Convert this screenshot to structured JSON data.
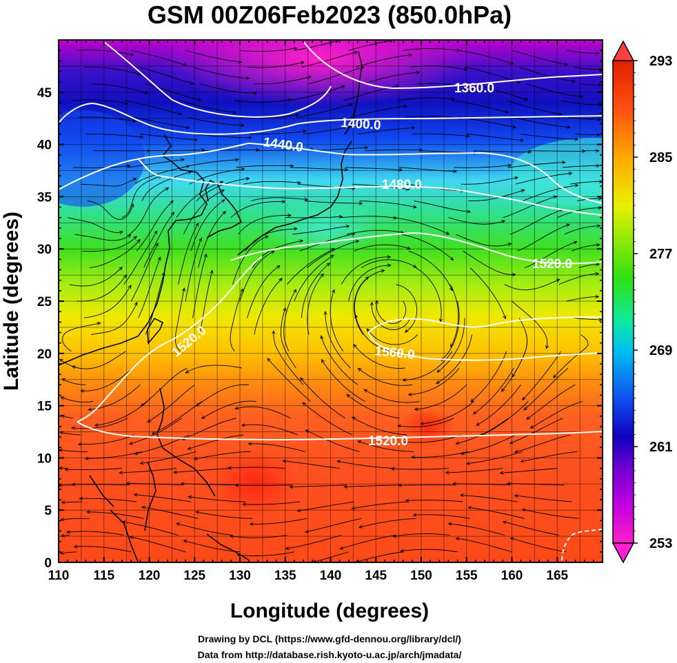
{
  "title": "GSM 00Z06Feb2023 (850.0hPa)",
  "x_axis": {
    "label": "Longitude (degrees)",
    "range": [
      110,
      170
    ],
    "ticks": [
      "110",
      "115",
      "120",
      "125",
      "130",
      "135",
      "140",
      "145",
      "150",
      "155",
      "160",
      "165"
    ]
  },
  "y_axis": {
    "label": "Latitude  (degrees)",
    "range": [
      0,
      50
    ],
    "ticks": [
      "0",
      "5",
      "10",
      "15",
      "20",
      "25",
      "30",
      "35",
      "40",
      "45"
    ]
  },
  "colorbar": {
    "range": [
      253,
      293
    ],
    "ticks": [
      "253",
      "261",
      "269",
      "277",
      "285",
      "293"
    ],
    "colors": [
      "#ff1fc8",
      "#c000e0",
      "#7a00d8",
      "#1800c8",
      "#1048f0",
      "#00c8f0",
      "#10e880",
      "#38e010",
      "#e8f000",
      "#ffa000",
      "#ff5000",
      "#e02000"
    ]
  },
  "contours": [
    {
      "value": 1360.0,
      "label": "1360.0"
    },
    {
      "value": 1400.0,
      "label": "1400.0"
    },
    {
      "value": 1440.0,
      "label": "1440.0"
    },
    {
      "value": 1480.0,
      "label": "1480.0"
    },
    {
      "value": 1520.0,
      "label": "1520.0"
    },
    {
      "value": 1520.0,
      "label": "1520.0"
    },
    {
      "value": 1520.0,
      "label": "1520.0"
    },
    {
      "value": 1560.0,
      "label": "1560.0"
    }
  ],
  "credits": {
    "drawing": "Drawing by DCL (https://www.gfd-dennou.org/library/dcl/)",
    "data": "Data from http://database.rish.kyoto-u.ac.jp/arch/jmadata/"
  }
}
